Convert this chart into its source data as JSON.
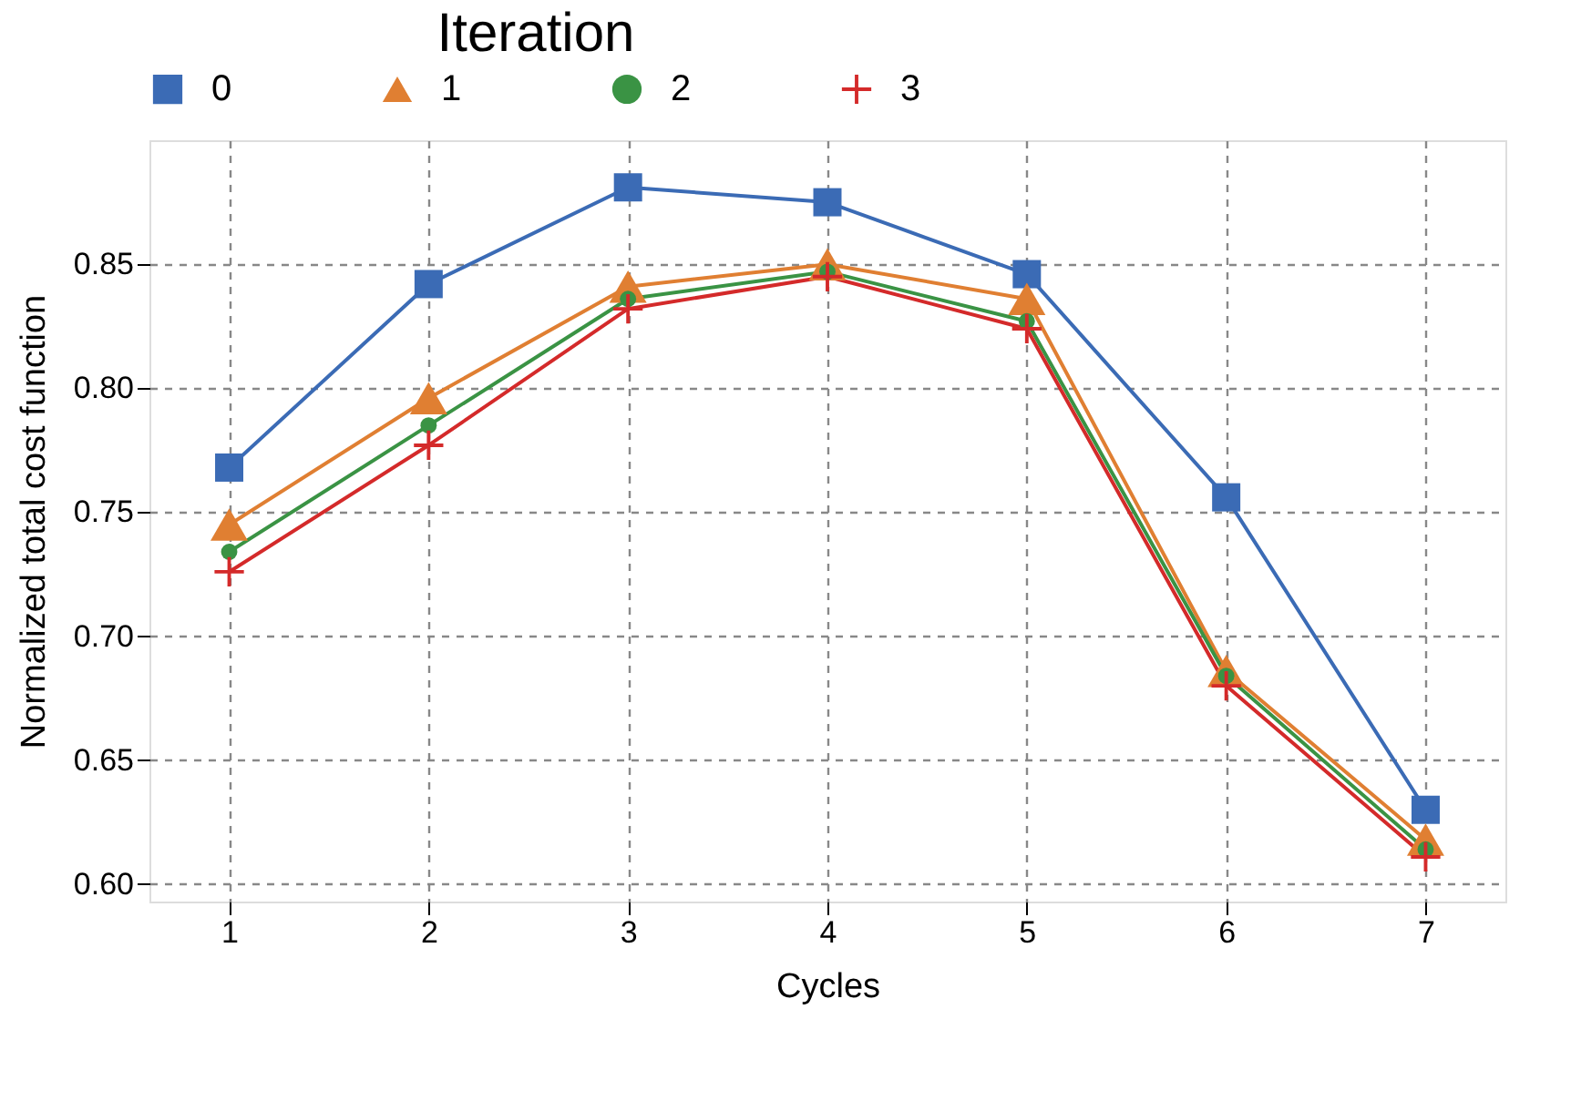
{
  "chart_data": {
    "type": "line",
    "xlabel": "Cycles",
    "ylabel": "Normalized total cost function",
    "legend_title": "Iteration",
    "legend": "top",
    "grid": true,
    "line_style": "solid",
    "x": [
      1,
      2,
      3,
      4,
      5,
      6,
      7
    ],
    "xlim": [
      0.6,
      7.4
    ],
    "xticks": [
      1,
      2,
      3,
      4,
      5,
      6,
      7
    ],
    "ylim": [
      0.593,
      0.9
    ],
    "yticks": [
      {
        "value": 0.6,
        "label": "0.60"
      },
      {
        "value": 0.65,
        "label": "0.65"
      },
      {
        "value": 0.7,
        "label": "0.70"
      },
      {
        "value": 0.75,
        "label": "0.75"
      },
      {
        "value": 0.8,
        "label": "0.80"
      },
      {
        "value": 0.85,
        "label": "0.85"
      }
    ],
    "series": [
      {
        "name": "0",
        "color": "#3b6bb5",
        "marker": "square",
        "values": [
          0.768,
          0.842,
          0.881,
          0.875,
          0.846,
          0.756,
          0.63
        ]
      },
      {
        "name": "1",
        "color": "#e07f32",
        "marker": "triangle",
        "values": [
          0.745,
          0.796,
          0.841,
          0.85,
          0.836,
          0.686,
          0.618
        ]
      },
      {
        "name": "2",
        "color": "#3a9344",
        "marker": "circle",
        "values": [
          0.734,
          0.785,
          0.836,
          0.847,
          0.827,
          0.684,
          0.614
        ]
      },
      {
        "name": "3",
        "color": "#d42a2a",
        "marker": "cross",
        "values": [
          0.726,
          0.777,
          0.832,
          0.845,
          0.824,
          0.68,
          0.611
        ]
      }
    ]
  }
}
